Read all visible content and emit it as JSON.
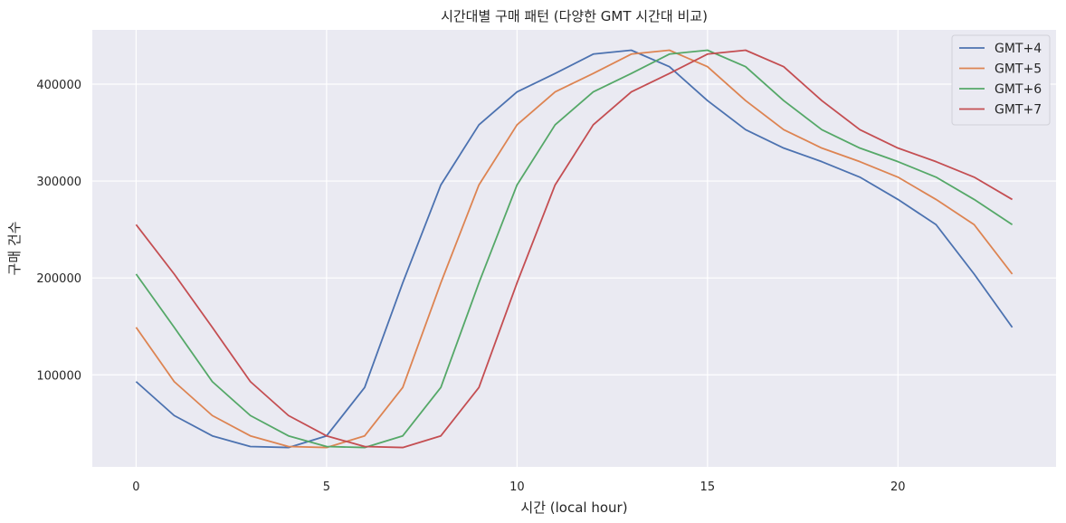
{
  "chart_data": {
    "type": "line",
    "title": "시간대별 구매 패턴 (다양한 GMT 시간대 비교)",
    "xlabel": "시간 (local hour)",
    "ylabel": "구매 건수",
    "xlim": [
      -1.15,
      24.15
    ],
    "ylim": [
      5000,
      456000
    ],
    "x_ticks": [
      0,
      5,
      10,
      15,
      20
    ],
    "y_ticks": [
      100000,
      200000,
      300000,
      400000
    ],
    "grid": true,
    "legend_position": "top-right",
    "x": [
      0,
      1,
      2,
      3,
      4,
      5,
      6,
      7,
      8,
      9,
      10,
      11,
      12,
      13,
      14,
      15,
      16,
      17,
      18,
      19,
      20,
      21,
      22,
      23
    ],
    "series": [
      {
        "name": "GMT+4",
        "color": "#4c72b0",
        "values": [
          93000,
          58000,
          37000,
          26000,
          25000,
          37000,
          87000,
          195000,
          296000,
          358000,
          392000,
          411000,
          431000,
          435000,
          418000,
          383000,
          353000,
          334000,
          320000,
          304000,
          281000,
          255000,
          204000,
          149000
        ]
      },
      {
        "name": "GMT+5",
        "color": "#dd8452",
        "values": [
          149000,
          93000,
          58000,
          37000,
          26000,
          25000,
          37000,
          87000,
          195000,
          296000,
          358000,
          392000,
          411000,
          431000,
          435000,
          418000,
          383000,
          353000,
          334000,
          320000,
          304000,
          281000,
          255000,
          204000
        ]
      },
      {
        "name": "GMT+6",
        "color": "#55a868",
        "values": [
          204000,
          149000,
          93000,
          58000,
          37000,
          26000,
          25000,
          37000,
          87000,
          195000,
          296000,
          358000,
          392000,
          411000,
          431000,
          435000,
          418000,
          383000,
          353000,
          334000,
          320000,
          304000,
          281000,
          255000
        ]
      },
      {
        "name": "GMT+7",
        "color": "#c44e52",
        "values": [
          255000,
          204000,
          149000,
          93000,
          58000,
          37000,
          26000,
          25000,
          37000,
          87000,
          195000,
          296000,
          358000,
          392000,
          411000,
          431000,
          435000,
          418000,
          383000,
          353000,
          334000,
          320000,
          304000,
          281000
        ]
      }
    ]
  }
}
